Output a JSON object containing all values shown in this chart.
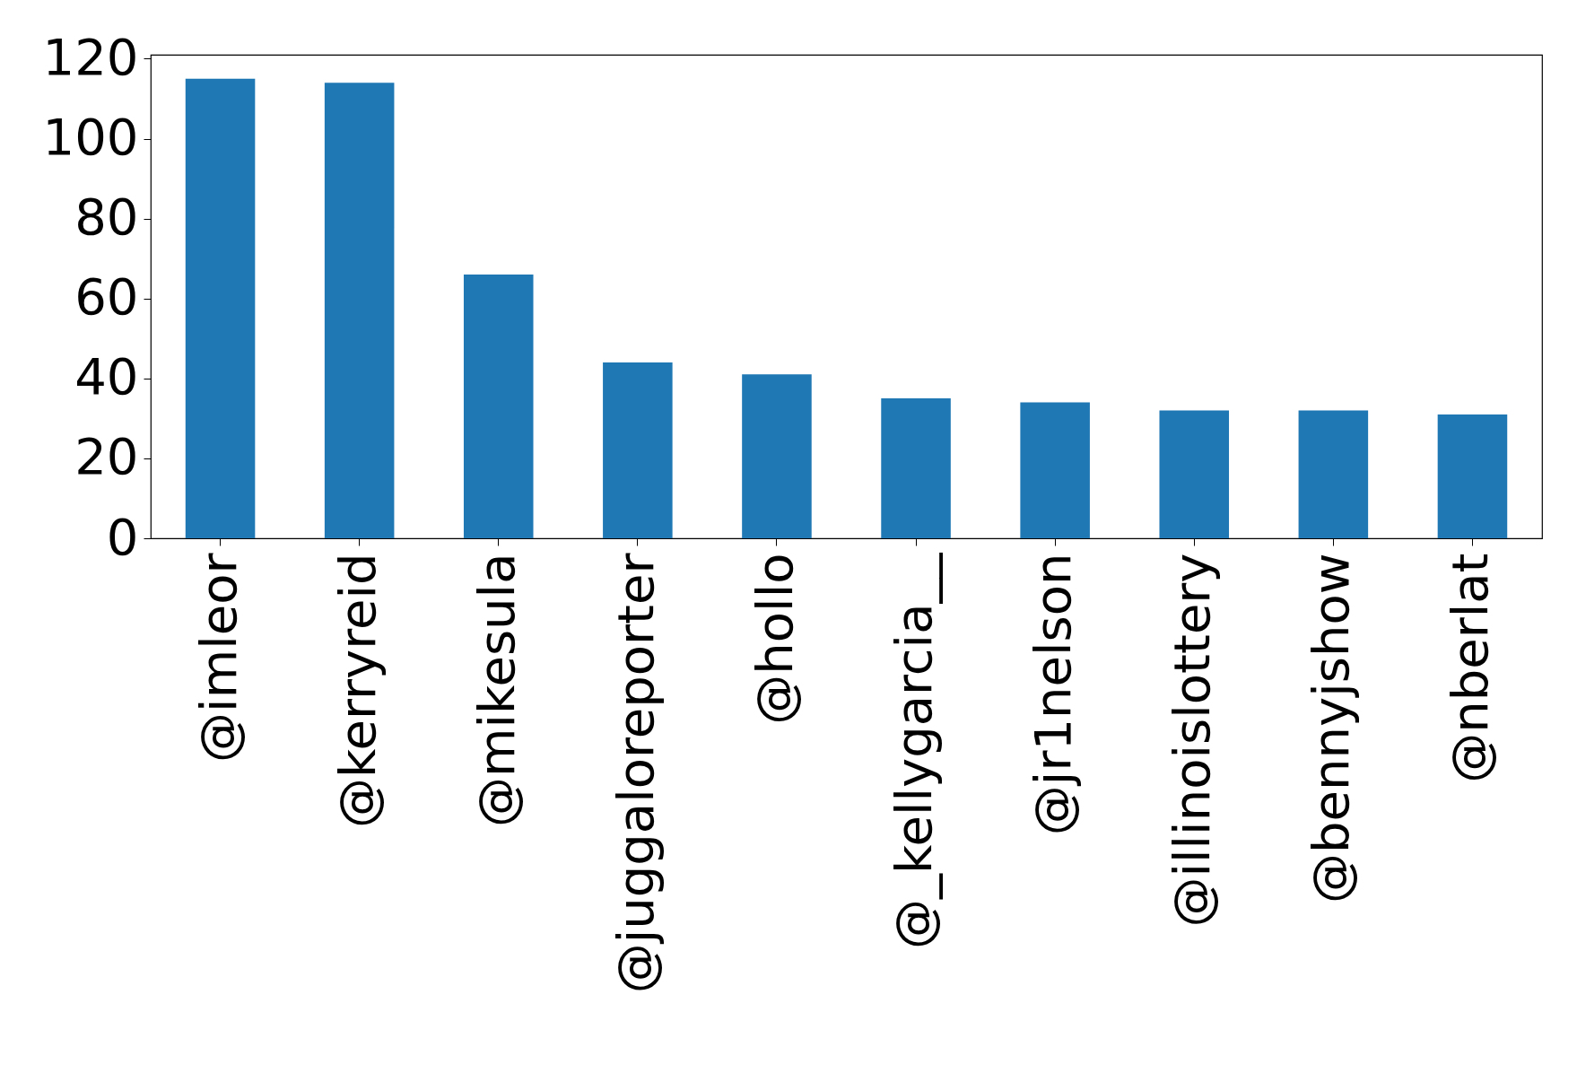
{
  "chart_data": {
    "type": "bar",
    "categories": [
      "@imleor",
      "@kerryreid",
      "@mikesula",
      "@juggaloreporter",
      "@hollo",
      "@_kellygarcia__",
      "@jr1nelson",
      "@illinoislottery",
      "@bennyjshow",
      "@nberlat"
    ],
    "values": [
      115,
      114,
      66,
      44,
      41,
      35,
      34,
      32,
      32,
      31
    ],
    "color": "#1f77b4",
    "ylim": [
      0,
      121
    ],
    "yticks": [
      0,
      20,
      40,
      60,
      80,
      100,
      120
    ],
    "grid": false
  }
}
